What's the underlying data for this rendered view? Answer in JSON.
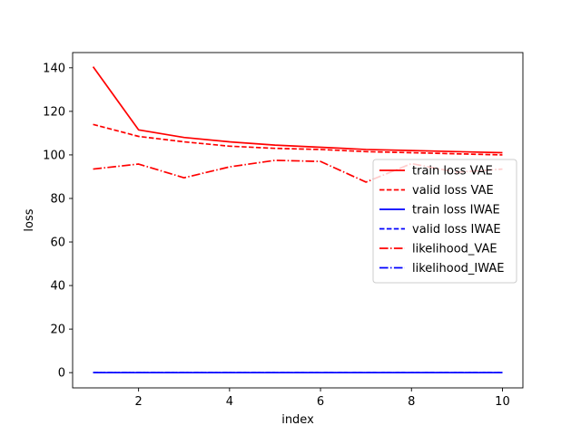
{
  "chart_data": {
    "type": "line",
    "title": "",
    "xlabel": "index",
    "ylabel": "loss",
    "xlim": [
      0.55,
      10.45
    ],
    "ylim": [
      -7,
      147
    ],
    "xticks": [
      2,
      4,
      6,
      8,
      10
    ],
    "yticks": [
      0,
      20,
      40,
      60,
      80,
      100,
      120,
      140
    ],
    "grid": false,
    "legend_position": "center-right",
    "x": [
      1,
      2,
      3,
      4,
      5,
      6,
      7,
      8,
      9,
      10
    ],
    "series": [
      {
        "name": "train loss VAE",
        "color": "#ff0000",
        "dash": "solid",
        "values": [
          140.5,
          111.5,
          108.0,
          106.0,
          104.5,
          103.5,
          102.5,
          102.0,
          101.5,
          101.0
        ]
      },
      {
        "name": "valid loss VAE",
        "color": "#ff0000",
        "dash": "dashed",
        "values": [
          114.0,
          108.5,
          106.0,
          104.0,
          103.0,
          102.5,
          101.5,
          101.0,
          100.5,
          100.0
        ]
      },
      {
        "name": "train loss IWAE",
        "color": "#0000ff",
        "dash": "solid",
        "values": [
          0,
          0,
          0,
          0,
          0,
          0,
          0,
          0,
          0,
          0
        ]
      },
      {
        "name": "valid loss IWAE",
        "color": "#0000ff",
        "dash": "dashed",
        "values": [
          0,
          0,
          0,
          0,
          0,
          0,
          0,
          0,
          0,
          0
        ]
      },
      {
        "name": "likelihood_VAE",
        "color": "#ff0000",
        "dash": "dashdot",
        "values": [
          93.5,
          95.8,
          89.5,
          94.5,
          97.5,
          97.0,
          87.5,
          96.0,
          92.0,
          93.5
        ]
      },
      {
        "name": "likelihood_IWAE",
        "color": "#0000ff",
        "dash": "dashdot",
        "values": [
          0,
          0,
          0,
          0,
          0,
          0,
          0,
          0,
          0,
          0
        ]
      }
    ]
  }
}
